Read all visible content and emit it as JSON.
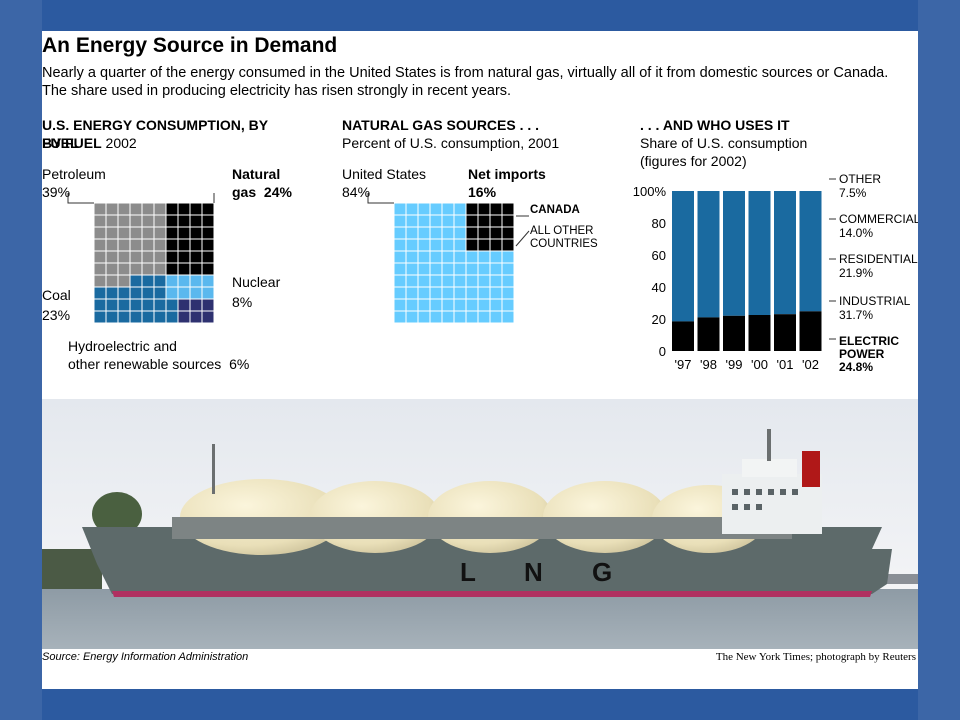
{
  "headline": "An Energy Source in Demand",
  "intro": "Nearly a quarter of the energy consumed in the United States is from natural gas, virtually all of it from domestic sources or Canada. The share used in producing electricity has risen strongly in recent years.",
  "colors": {
    "petroleum": "#8c8c8c",
    "natural_gas": "#000000",
    "coal": "#1a6aa0",
    "nuclear": "#5ab8ee",
    "hydro": "#2e3170",
    "us_sources": "#66ccff",
    "bars_blue": "#1a6aa0",
    "electric": "#000000"
  },
  "chart_data": [
    {
      "type": "waffle",
      "title": "U.S. ENERGY CONSUMPTION, BY FUEL",
      "subtitle": "2002",
      "categories": [
        "Petroleum",
        "Natural gas",
        "Coal",
        "Nuclear",
        "Hydroelectric and other renewable sources"
      ],
      "values": [
        39,
        24,
        23,
        8,
        6
      ],
      "labels": {
        "petroleum": "Petroleum",
        "petroleum_value": "39%",
        "gas_line1": "Natural",
        "gas_line2": "gas",
        "gas_value": "24%",
        "nuclear": "Nuclear",
        "nuclear_value": "8%",
        "coal": "Coal",
        "coal_value": "23%",
        "hydro_line1": "Hydroelectric and",
        "hydro_line2": "other renewable sources",
        "hydro_value": "6%"
      }
    },
    {
      "type": "waffle",
      "title": "NATURAL GAS SOURCES . . .",
      "subtitle": "Percent of U.S. consumption, 2001",
      "categories": [
        "United States",
        "Net imports"
      ],
      "values": [
        84,
        16
      ],
      "import_split": [
        "CANADA",
        "ALL OTHER COUNTRIES"
      ],
      "labels": {
        "us": "United States",
        "us_value": "84%",
        "imports": "Net imports",
        "imports_value": "16%",
        "canada": "CANADA",
        "other_line1": "ALL OTHER",
        "other_line2": "COUNTRIES"
      }
    },
    {
      "type": "bar",
      "stacked": true,
      "title": ". . . AND WHO USES IT",
      "subtitle_line1": "Share of U.S. consumption",
      "subtitle_line2": "(figures for 2002)",
      "categories": [
        "'97",
        "'98",
        "'99",
        "'00",
        "'01",
        "'02"
      ],
      "y_ticks": [
        "0",
        "20",
        "40",
        "60",
        "80",
        "100%"
      ],
      "ylim": [
        0,
        100
      ],
      "series": [
        {
          "name": "ELECTRIC POWER",
          "values": [
            18.5,
            21,
            22,
            22.5,
            23,
            24.8
          ]
        }
      ],
      "legend": [
        {
          "name": "OTHER",
          "value": "7.5%"
        },
        {
          "name": "COMMERCIAL",
          "value": "14.0%"
        },
        {
          "name": "RESIDENTIAL",
          "value": "21.9%"
        },
        {
          "name": "INDUSTRIAL",
          "value": "31.7%"
        },
        {
          "name_line1": "ELECTRIC",
          "name_line2": "POWER",
          "value": "24.8%"
        }
      ],
      "legend_placement": "right"
    }
  ],
  "photo": {
    "hull_letters": [
      "L",
      "N",
      "G"
    ]
  },
  "source": "Source: Energy Information Administration",
  "credit": "The New York Times; photograph by Reuters"
}
